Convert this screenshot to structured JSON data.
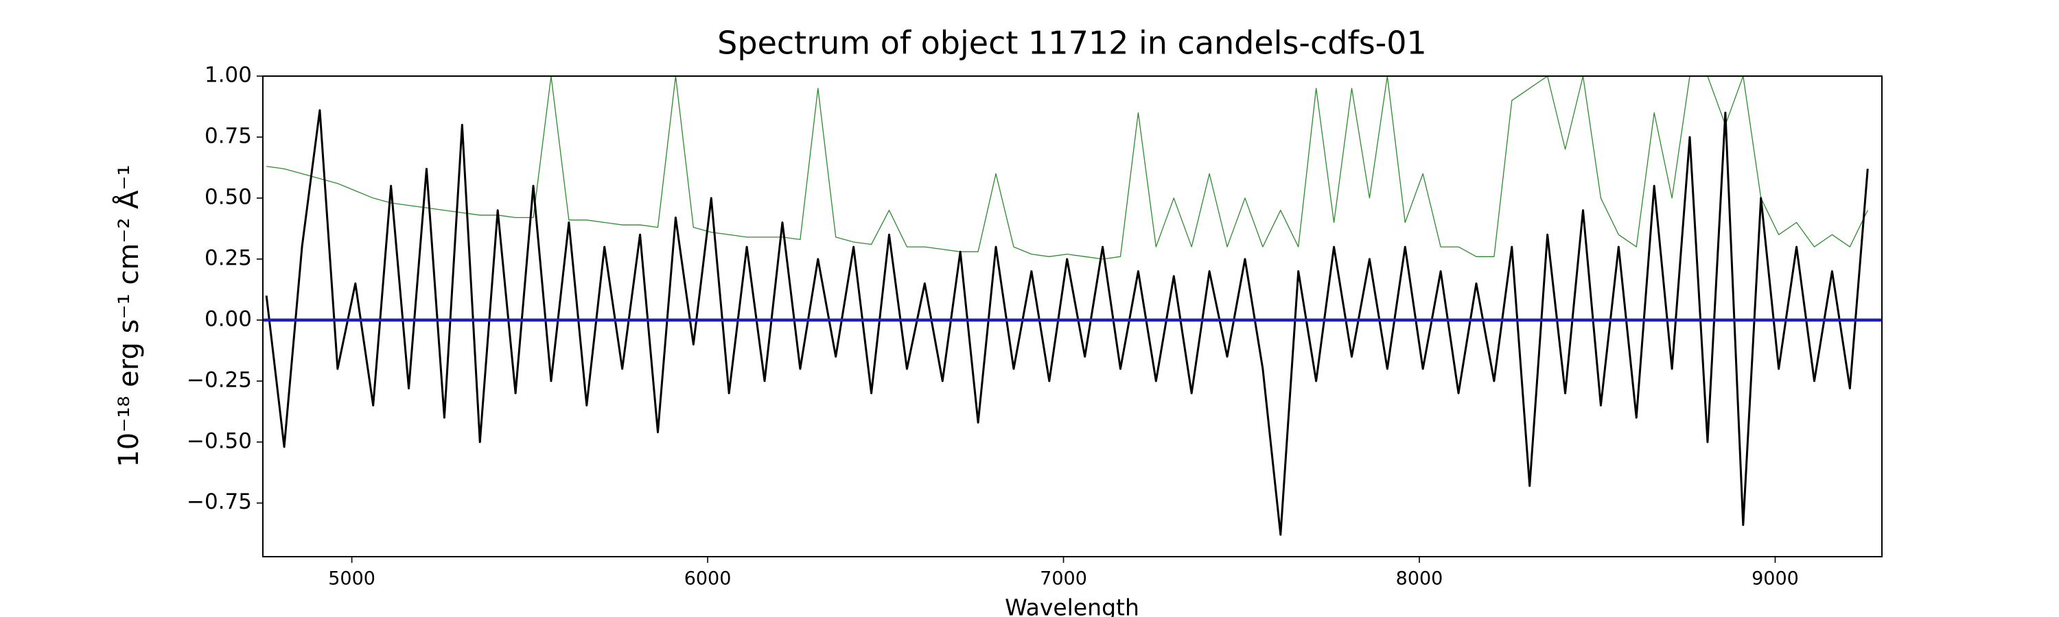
{
  "chart_data": {
    "type": "line",
    "title": "Spectrum of object 11712 in candels-cdfs-01",
    "x_label": "Wavelength",
    "y_label": "10⁻¹⁸ erg s⁻¹ cm⁻² Å⁻¹",
    "xlim": [
      4750,
      9300
    ],
    "ylim": [
      -0.97,
      1.0
    ],
    "xticks": [
      5000,
      6000,
      7000,
      8000,
      9000
    ],
    "yticks": [
      {
        "value": -0.75,
        "label": "−0.75"
      },
      {
        "value": -0.5,
        "label": "−0.50"
      },
      {
        "value": -0.25,
        "label": "−0.25"
      },
      {
        "value": 0,
        "label": "0.00"
      },
      {
        "value": 0.25,
        "label": "0.25"
      },
      {
        "value": 0.5,
        "label": "0.50"
      },
      {
        "value": 0.75,
        "label": "0.75"
      },
      {
        "value": 1.0,
        "label": "1.00"
      }
    ],
    "grid": false,
    "x": [
      4760,
      4810,
      4860,
      4910,
      4960,
      5010,
      5060,
      5110,
      5160,
      5210,
      5260,
      5310,
      5360,
      5410,
      5460,
      5510,
      5560,
      5610,
      5660,
      5710,
      5760,
      5810,
      5860,
      5910,
      5960,
      6010,
      6060,
      6110,
      6160,
      6210,
      6260,
      6310,
      6360,
      6410,
      6460,
      6510,
      6560,
      6610,
      6660,
      6710,
      6760,
      6810,
      6860,
      6910,
      6960,
      7010,
      7060,
      7110,
      7160,
      7210,
      7260,
      7310,
      7360,
      7410,
      7460,
      7510,
      7560,
      7610,
      7660,
      7710,
      7760,
      7810,
      7860,
      7910,
      7960,
      8010,
      8060,
      8110,
      8160,
      8210,
      8260,
      8310,
      8360,
      8410,
      8460,
      8510,
      8560,
      8610,
      8660,
      8710,
      8760,
      8810,
      8860,
      8910,
      8960,
      9010,
      9060,
      9110,
      9160,
      9210,
      9260
    ],
    "series": [
      {
        "color": "#2e8b2e",
        "values": [
          0.63,
          0.62,
          0.6,
          0.58,
          0.56,
          0.53,
          0.5,
          0.48,
          0.47,
          0.46,
          0.45,
          0.44,
          0.43,
          0.43,
          0.42,
          0.42,
          1.0,
          0.41,
          0.41,
          0.4,
          0.39,
          0.39,
          0.38,
          1.0,
          0.38,
          0.36,
          0.35,
          0.34,
          0.34,
          0.34,
          0.33,
          0.95,
          0.34,
          0.32,
          0.31,
          0.45,
          0.3,
          0.3,
          0.29,
          0.28,
          0.28,
          0.6,
          0.3,
          0.27,
          0.26,
          0.27,
          0.26,
          0.25,
          0.26,
          0.85,
          0.3,
          0.5,
          0.3,
          0.6,
          0.3,
          0.5,
          0.3,
          0.45,
          0.3,
          0.95,
          0.4,
          0.95,
          0.5,
          1.0,
          0.4,
          0.6,
          0.3,
          0.3,
          0.26,
          0.26,
          0.9,
          0.95,
          1.0,
          0.7,
          1.0,
          0.5,
          0.35,
          0.3,
          0.85,
          0.5,
          1.0,
          1.0,
          0.8,
          1.0,
          0.5,
          0.35,
          0.4,
          0.3,
          0.35,
          0.3,
          0.45
        ]
      },
      {
        "color": "#000000",
        "values": [
          0.1,
          -0.52,
          0.3,
          0.86,
          -0.2,
          0.15,
          -0.35,
          0.55,
          -0.28,
          0.62,
          -0.4,
          0.8,
          -0.5,
          0.45,
          -0.3,
          0.55,
          -0.25,
          0.4,
          -0.35,
          0.3,
          -0.2,
          0.35,
          -0.46,
          0.42,
          -0.1,
          0.5,
          -0.3,
          0.3,
          -0.25,
          0.4,
          -0.2,
          0.25,
          -0.15,
          0.3,
          -0.3,
          0.35,
          -0.2,
          0.15,
          -0.25,
          0.28,
          -0.42,
          0.3,
          -0.2,
          0.2,
          -0.25,
          0.25,
          -0.15,
          0.3,
          -0.2,
          0.2,
          -0.25,
          0.18,
          -0.3,
          0.2,
          -0.15,
          0.25,
          -0.2,
          -0.88,
          0.2,
          -0.25,
          0.3,
          -0.15,
          0.25,
          -0.2,
          0.3,
          -0.2,
          0.2,
          -0.3,
          0.15,
          -0.25,
          0.3,
          -0.68,
          0.35,
          -0.3,
          0.45,
          -0.35,
          0.3,
          -0.4,
          0.55,
          -0.2,
          0.75,
          -0.5,
          0.85,
          -0.84,
          0.5,
          -0.2,
          0.3,
          -0.25,
          0.2,
          -0.28,
          0.62
        ]
      },
      {
        "color": "#1f1fb4",
        "x": [
          4750,
          9300
        ],
        "values": [
          0,
          0
        ]
      }
    ]
  }
}
